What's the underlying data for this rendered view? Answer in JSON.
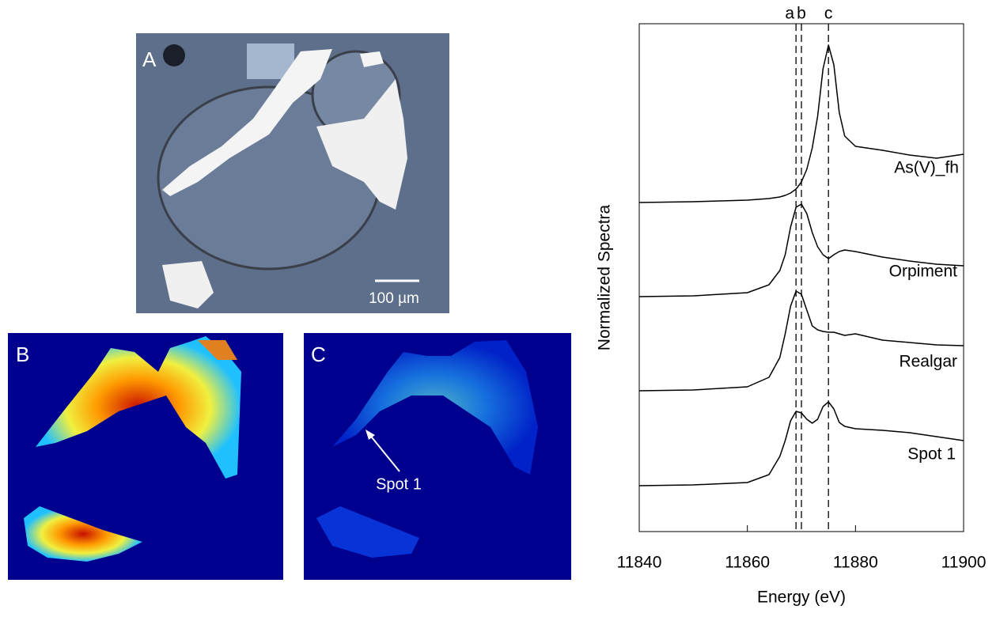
{
  "panels": [
    {
      "label": "A",
      "scale_bar": "100 µm"
    },
    {
      "label": "B"
    },
    {
      "label": "C",
      "annotation": "Spot 1"
    }
  ],
  "chart_data": {
    "type": "line",
    "xlabel": "Energy (eV)",
    "ylabel": "Normalized Spectra",
    "x": [
      11840,
      11850,
      11860,
      11864,
      11866,
      11867,
      11868,
      11869,
      11870,
      11871,
      11872,
      11873,
      11874,
      11875,
      11876,
      11877,
      11878,
      11880,
      11885,
      11890,
      11895,
      11900
    ],
    "series": [
      {
        "name": "As(V)_fh",
        "color": "#000000",
        "values": [
          4.16,
          4.17,
          4.19,
          4.21,
          4.23,
          4.25,
          4.28,
          4.33,
          4.42,
          4.58,
          4.85,
          5.25,
          5.85,
          6.15,
          5.9,
          5.3,
          5.0,
          4.87,
          4.82,
          4.76,
          4.72,
          4.77
        ]
      },
      {
        "name": "Orpiment",
        "color": "#000000",
        "values": [
          2.97,
          2.98,
          3.02,
          3.12,
          3.3,
          3.5,
          3.85,
          4.1,
          4.14,
          4.02,
          3.78,
          3.6,
          3.5,
          3.45,
          3.5,
          3.54,
          3.56,
          3.54,
          3.47,
          3.42,
          3.38,
          3.36
        ]
      },
      {
        "name": "Realgar",
        "color": "#000000",
        "values": [
          1.78,
          1.79,
          1.83,
          1.95,
          2.2,
          2.5,
          2.85,
          3.04,
          3.0,
          2.8,
          2.6,
          2.55,
          2.53,
          2.52,
          2.52,
          2.5,
          2.48,
          2.5,
          2.42,
          2.39,
          2.36,
          2.35
        ]
      },
      {
        "name": "Spot 1",
        "color": "#000000",
        "values": [
          0.58,
          0.59,
          0.62,
          0.72,
          0.95,
          1.15,
          1.4,
          1.52,
          1.5,
          1.42,
          1.37,
          1.42,
          1.58,
          1.64,
          1.55,
          1.38,
          1.33,
          1.3,
          1.28,
          1.25,
          1.2,
          1.15
        ]
      }
    ],
    "reference_lines": [
      {
        "label": "a",
        "x": 11869
      },
      {
        "label": "b",
        "x": 11870
      },
      {
        "label": "c",
        "x": 11875
      }
    ],
    "xlim": [
      11840,
      11900
    ],
    "xticks": [
      11840,
      11860,
      11880,
      11900
    ],
    "ylim": [
      0,
      6.42
    ]
  }
}
